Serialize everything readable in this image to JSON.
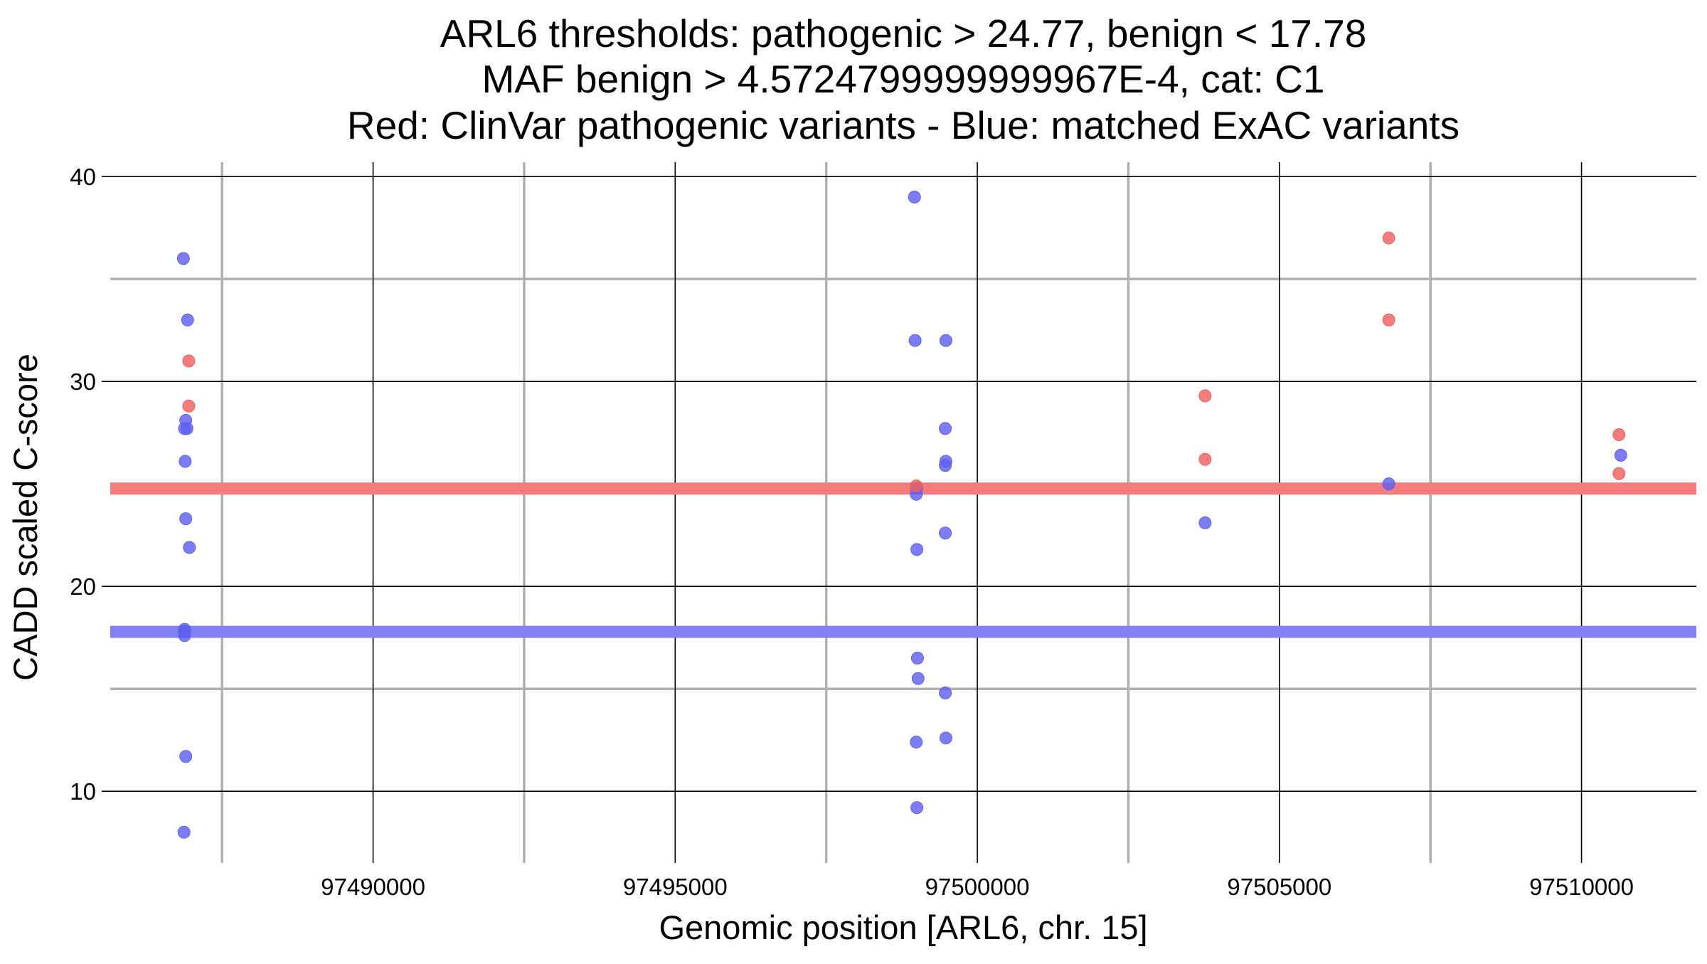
{
  "chart_data": {
    "type": "scatter",
    "title_lines": [
      "ARL6 thresholds: pathogenic > 24.77, benign < 17.78",
      "MAF benign > 4.5724799999999967E-4, cat: C1",
      "Red: ClinVar pathogenic variants - Blue: matched ExAC variants"
    ],
    "xlabel": "Genomic position [ARL6, chr. 15]",
    "ylabel": "CADD scaled C-score",
    "xlim": [
      97485650,
      97511900
    ],
    "ylim": [
      6.5,
      40.7
    ],
    "x_ticks": [
      97490000,
      97495000,
      97500000,
      97505000,
      97510000
    ],
    "x_tick_labels": [
      "97490000",
      "97495000",
      "97500000",
      "97505000",
      "97510000"
    ],
    "y_ticks": [
      10,
      20,
      30,
      40
    ],
    "y_tick_labels": [
      "10",
      "20",
      "30",
      "40"
    ],
    "x_minor_gridlines": [
      97487500,
      97492500,
      97497500,
      97502500,
      97507500
    ],
    "y_minor_gridlines": [
      15,
      25,
      35
    ],
    "grid": true,
    "legend": "none",
    "colors": {
      "pathogenic": "#f06060",
      "benign": "#6060f0",
      "pathogenic_line": "#f47c7c",
      "benign_line": "#8080f4",
      "major_grid": "#000000",
      "minor_grid": "#b0b0b0"
    },
    "threshold_lines": [
      {
        "series": "pathogenic",
        "y": 24.77
      },
      {
        "series": "benign",
        "y": 17.78
      }
    ],
    "series": [
      {
        "key": "pathogenic",
        "points": [
          {
            "x": 97486950,
            "y": 31.0
          },
          {
            "x": 97486950,
            "y": 28.8
          },
          {
            "x": 97498990,
            "y": 24.9
          },
          {
            "x": 97503770,
            "y": 29.3
          },
          {
            "x": 97503770,
            "y": 26.2
          },
          {
            "x": 97506810,
            "y": 37.0
          },
          {
            "x": 97506810,
            "y": 33.0
          },
          {
            "x": 97510620,
            "y": 27.4
          },
          {
            "x": 97510620,
            "y": 25.5
          }
        ]
      },
      {
        "key": "benign",
        "points": [
          {
            "x": 97486860,
            "y": 36.0
          },
          {
            "x": 97486930,
            "y": 33.0
          },
          {
            "x": 97486900,
            "y": 28.1
          },
          {
            "x": 97486880,
            "y": 27.7
          },
          {
            "x": 97486920,
            "y": 27.7
          },
          {
            "x": 97486890,
            "y": 26.1
          },
          {
            "x": 97486900,
            "y": 23.3
          },
          {
            "x": 97486960,
            "y": 21.9
          },
          {
            "x": 97486880,
            "y": 17.9
          },
          {
            "x": 97486880,
            "y": 17.8
          },
          {
            "x": 97486880,
            "y": 17.6
          },
          {
            "x": 97486900,
            "y": 11.7
          },
          {
            "x": 97486870,
            "y": 8.0
          },
          {
            "x": 97498960,
            "y": 39.0
          },
          {
            "x": 97498970,
            "y": 32.0
          },
          {
            "x": 97499480,
            "y": 32.0
          },
          {
            "x": 97499470,
            "y": 27.7
          },
          {
            "x": 97499480,
            "y": 26.1
          },
          {
            "x": 97499470,
            "y": 25.9
          },
          {
            "x": 97499000,
            "y": 24.8
          },
          {
            "x": 97498990,
            "y": 24.5
          },
          {
            "x": 97499470,
            "y": 22.6
          },
          {
            "x": 97499000,
            "y": 21.8
          },
          {
            "x": 97499010,
            "y": 16.5
          },
          {
            "x": 97499020,
            "y": 15.5
          },
          {
            "x": 97499470,
            "y": 14.8
          },
          {
            "x": 97499480,
            "y": 12.6
          },
          {
            "x": 97498990,
            "y": 12.4
          },
          {
            "x": 97499000,
            "y": 9.2
          },
          {
            "x": 97503770,
            "y": 23.1
          },
          {
            "x": 97506810,
            "y": 25.0
          },
          {
            "x": 97510650,
            "y": 26.4
          }
        ]
      }
    ]
  }
}
